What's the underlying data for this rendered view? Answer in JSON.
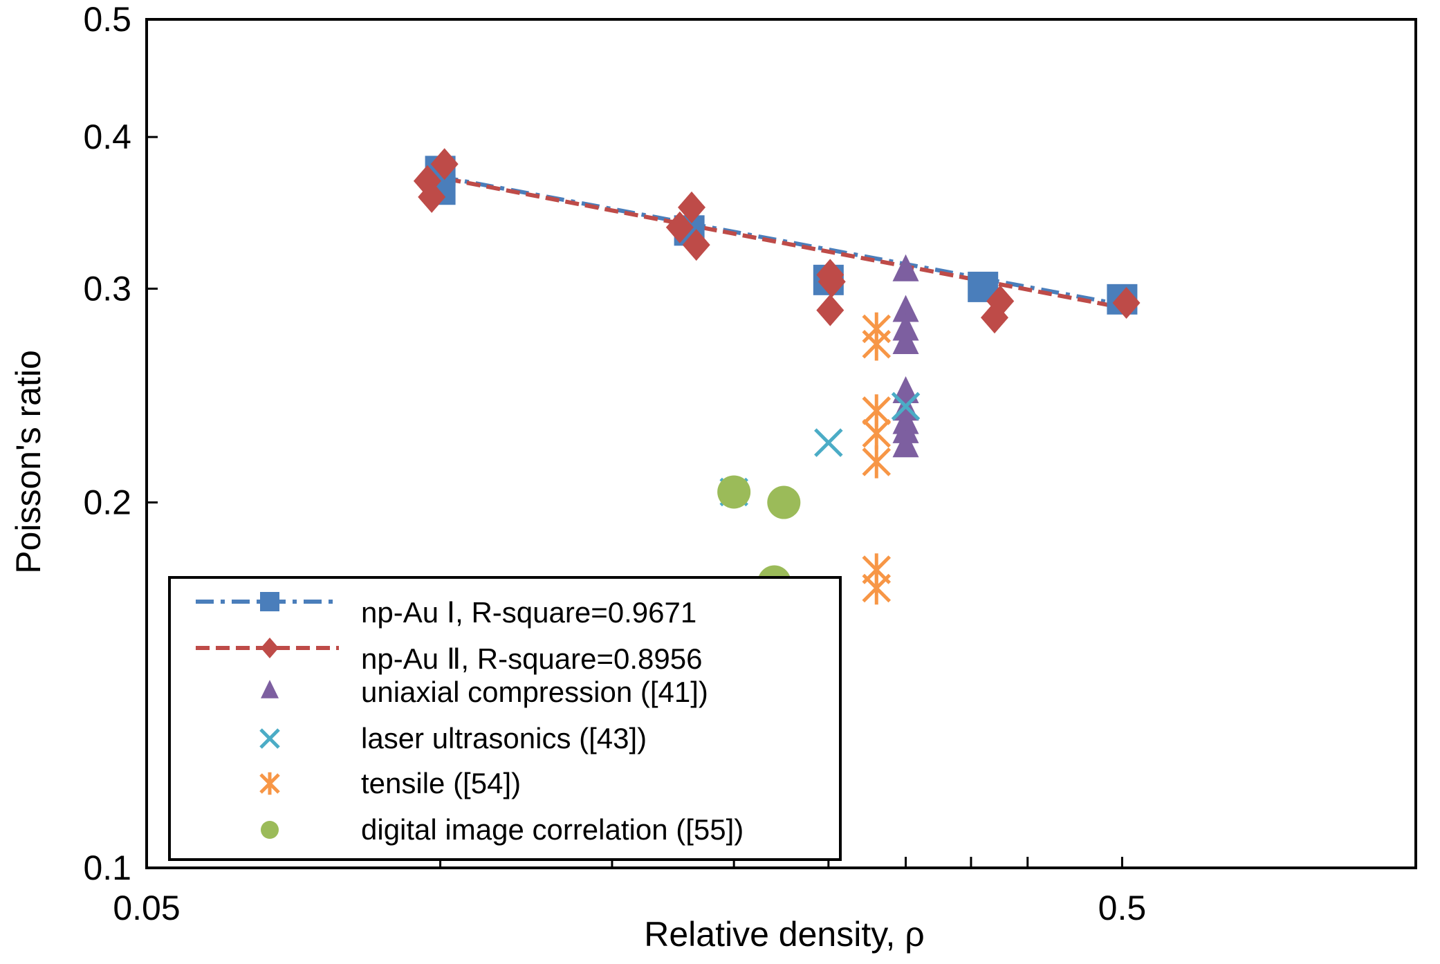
{
  "chart_data": {
    "type": "scatter",
    "xscale": "log",
    "yscale": "log",
    "xlim": [
      0.05,
      1.0
    ],
    "ylim": [
      0.1,
      0.5
    ],
    "xlabel": "Relative density, ρ",
    "ylabel": "Poisson's ratio",
    "xtick_labels": [
      {
        "value": 0.05,
        "label": "0.05"
      },
      {
        "value": 0.5,
        "label": "0.5"
      }
    ],
    "x_minor_ticks": [
      0.1,
      0.15,
      0.2,
      0.25,
      0.3,
      0.35,
      0.4
    ],
    "ytick_labels": [
      {
        "value": 0.1,
        "label": "0.1"
      },
      {
        "value": 0.2,
        "label": "0.2"
      },
      {
        "value": 0.3,
        "label": "0.3"
      },
      {
        "value": 0.4,
        "label": "0.4"
      },
      {
        "value": 0.5,
        "label": "0.5"
      }
    ],
    "series": [
      {
        "name": "np-Au Ⅰ, R-square=0.9671",
        "marker": "square",
        "color": "#4a7ebb",
        "line": "dashdot",
        "x": [
          0.1,
          0.1,
          0.18,
          0.25,
          0.36,
          0.5
        ],
        "y": [
          0.375,
          0.362,
          0.335,
          0.305,
          0.301,
          0.294
        ],
        "trend_x": [
          0.1,
          0.5
        ],
        "trend_y": [
          0.371,
          0.291
        ]
      },
      {
        "name": "np-Au Ⅱ, R-square=0.8956",
        "marker": "diamond",
        "color": "#be4b48",
        "line": "dashed",
        "x": [
          0.097,
          0.098,
          0.101,
          0.176,
          0.181,
          0.183,
          0.251,
          0.252,
          0.251,
          0.37,
          0.375,
          0.505
        ],
        "y": [
          0.368,
          0.357,
          0.38,
          0.337,
          0.35,
          0.326,
          0.308,
          0.304,
          0.288,
          0.284,
          0.293,
          0.292
        ],
        "trend_x": [
          0.097,
          0.505
        ],
        "trend_y": [
          0.372,
          0.289
        ]
      },
      {
        "name": "uniaxial compression ([41])",
        "marker": "triangle",
        "color": "#7d5fa0",
        "x": [
          0.3,
          0.3,
          0.3,
          0.3,
          0.3,
          0.3,
          0.3,
          0.3,
          0.3
        ],
        "y": [
          0.31,
          0.287,
          0.277,
          0.27,
          0.246,
          0.238,
          0.232,
          0.228,
          0.222
        ],
        "trend_x": [],
        "trend_y": []
      },
      {
        "name": "laser ultrasonics ([43])",
        "marker": "x",
        "color": "#4bacc6",
        "x": [
          0.2,
          0.25,
          0.3
        ],
        "y": [
          0.204,
          0.224,
          0.24
        ],
        "trend_x": [],
        "trend_y": []
      },
      {
        "name": "tensile ([54])",
        "marker": "star",
        "color": "#f79646",
        "x": [
          0.28,
          0.28,
          0.28,
          0.28,
          0.28,
          0.28,
          0.28
        ],
        "y": [
          0.278,
          0.27,
          0.238,
          0.228,
          0.216,
          0.176,
          0.17
        ],
        "trend_x": [],
        "trend_y": []
      },
      {
        "name": "digital image correlation ([55])",
        "marker": "circle",
        "color": "#9bbb59",
        "x": [
          0.2,
          0.22,
          0.225
        ],
        "y": [
          0.204,
          0.172,
          0.2
        ],
        "trend_x": [],
        "trend_y": []
      }
    ]
  },
  "colors": {
    "axis": "#000000",
    "background": "#ffffff"
  }
}
